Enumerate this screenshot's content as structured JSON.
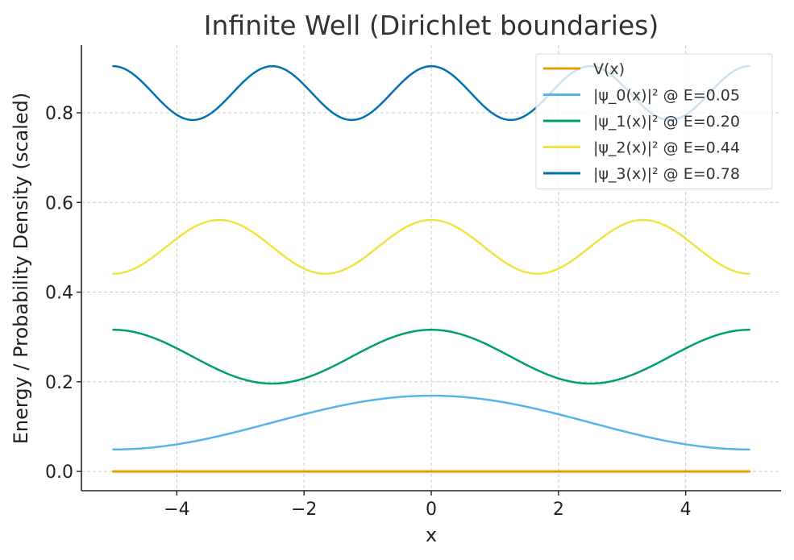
{
  "chart_data": {
    "type": "line",
    "title": "Infinite Well (Dirichlet boundaries)",
    "xlabel": "x",
    "ylabel": "Energy / Probability Density (scaled)",
    "xlim": [
      -5.5,
      5.5
    ],
    "ylim": [
      -0.043,
      0.951
    ],
    "xticks": [
      -4,
      -2,
      0,
      2,
      4
    ],
    "yticks": [
      0.0,
      0.2,
      0.4,
      0.6,
      0.8
    ],
    "grid": true,
    "legend_position": "top-right",
    "x_range": [
      -5,
      5
    ],
    "series": [
      {
        "name": "V(x)",
        "color": "#E69F00",
        "kind": "constant",
        "energy": 0.0,
        "amplitude": 0.0,
        "n": 0,
        "width": 3
      },
      {
        "name": "|ψ_0(x)|² @ E=0.05",
        "color": "#56B4E9",
        "kind": "density",
        "energy": 0.049,
        "amplitude": 0.12,
        "n": 0,
        "width": 2.5
      },
      {
        "name": "|ψ_1(x)|² @ E=0.20",
        "color": "#009E73",
        "kind": "density",
        "energy": 0.196,
        "amplitude": 0.12,
        "n": 1,
        "width": 2.5
      },
      {
        "name": "|ψ_2(x)|² @ E=0.44",
        "color": "#F0E442",
        "kind": "density",
        "energy": 0.441,
        "amplitude": 0.12,
        "n": 2,
        "width": 2.5
      },
      {
        "name": "|ψ_3(x)|² @ E=0.78",
        "color": "#0072B2",
        "kind": "density",
        "energy": 0.784,
        "amplitude": 0.12,
        "n": 3,
        "width": 2.5
      }
    ]
  }
}
